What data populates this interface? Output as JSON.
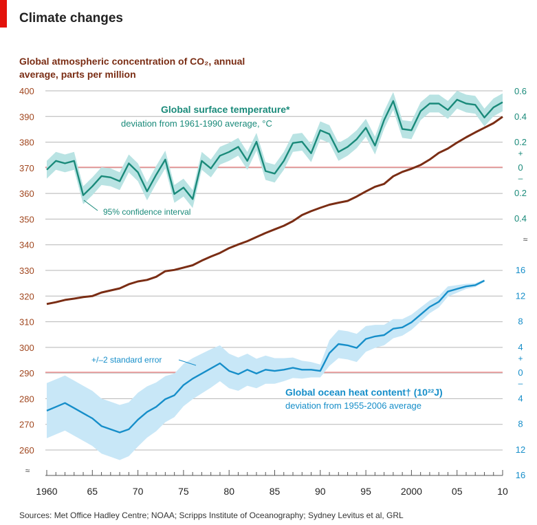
{
  "title": "Climate changes",
  "source": "Sources: Met Office Hadley Centre; NOAA; Scripps Institute of Oceanography; Sydney Levitus et al, GRL",
  "colors": {
    "co2": "#7a2d14",
    "temperature": "#1a8a7a",
    "temperature_band": "#b9e3e3",
    "ocean": "#168ec9",
    "ocean_band": "#c8e7f7",
    "zero_line": "#f08080",
    "grid": "#b5b5b5",
    "left_axis": "#a0461e",
    "right_axis_top": "#1a8a7a",
    "right_axis_bottom": "#168ec9"
  },
  "chart_data": [
    {
      "type": "line",
      "title": "Global atmospheric concentration of CO₂, annual average, parts per million",
      "x_ticks": [
        "1960",
        "65",
        "70",
        "75",
        "80",
        "85",
        "90",
        "95",
        "2000",
        "05",
        "10"
      ],
      "x_range": [
        1960,
        2010
      ],
      "ylim": [
        260,
        400
      ],
      "y_ticks": [
        260,
        270,
        280,
        290,
        300,
        310,
        320,
        330,
        340,
        350,
        360,
        370,
        380,
        390,
        400
      ],
      "series": [
        {
          "x": [
            1960,
            1961,
            1962,
            1963,
            1964,
            1965,
            1966,
            1967,
            1968,
            1969,
            1970,
            1971,
            1972,
            1973,
            1974,
            1975,
            1976,
            1977,
            1978,
            1979,
            1980,
            1981,
            1982,
            1983,
            1984,
            1985,
            1986,
            1987,
            1988,
            1989,
            1990,
            1991,
            1992,
            1993,
            1994,
            1995,
            1996,
            1997,
            1998,
            1999,
            2000,
            2001,
            2002,
            2003,
            2004,
            2005,
            2006,
            2007,
            2008,
            2009,
            2010
          ],
          "values": [
            316.9,
            317.6,
            318.5,
            319.0,
            319.6,
            320.0,
            321.4,
            322.2,
            323.0,
            324.6,
            325.7,
            326.3,
            327.5,
            329.7,
            330.2,
            331.1,
            332.0,
            333.8,
            335.4,
            336.8,
            338.7,
            340.1,
            341.4,
            343.0,
            344.6,
            346.0,
            347.4,
            349.2,
            351.6,
            353.1,
            354.4,
            355.6,
            356.4,
            357.1,
            358.8,
            360.8,
            362.6,
            363.7,
            366.7,
            368.4,
            369.6,
            371.1,
            373.2,
            375.8,
            377.5,
            379.8,
            381.9,
            383.8,
            385.6,
            387.4,
            389.9
          ]
        }
      ]
    },
    {
      "type": "area",
      "title": "Global surface temperature*",
      "subtitle": "deviation from 1961-1990 average, °C",
      "x_ticks": [
        "1960",
        "65",
        "70",
        "75",
        "80",
        "85",
        "90",
        "95",
        "2000",
        "05",
        "10"
      ],
      "x_range": [
        1960,
        2010
      ],
      "ylim": [
        -0.4,
        0.6
      ],
      "y_tick_labels": [
        "0.6",
        "0.4",
        "0.2",
        "0",
        "0.2",
        "0.4"
      ],
      "y_tick_values": [
        0.6,
        0.4,
        0.2,
        0,
        -0.2,
        -0.4
      ],
      "annotation": "95% confidence interval",
      "series": [
        {
          "x": [
            1960,
            1961,
            1962,
            1963,
            1964,
            1965,
            1966,
            1967,
            1968,
            1969,
            1970,
            1971,
            1972,
            1973,
            1974,
            1975,
            1976,
            1977,
            1978,
            1979,
            1980,
            1981,
            1982,
            1983,
            1984,
            1985,
            1986,
            1987,
            1988,
            1989,
            1990,
            1991,
            1992,
            1993,
            1994,
            1995,
            1996,
            1997,
            1998,
            1999,
            2000,
            2001,
            2002,
            2003,
            2004,
            2005,
            2006,
            2007,
            2008,
            2009,
            2010
          ],
          "values": [
            -0.02,
            0.05,
            0.03,
            0.05,
            -0.22,
            -0.15,
            -0.07,
            -0.08,
            -0.11,
            0.03,
            -0.04,
            -0.19,
            -0.06,
            0.06,
            -0.21,
            -0.16,
            -0.25,
            0.05,
            -0.01,
            0.09,
            0.12,
            0.16,
            0.05,
            0.2,
            -0.03,
            -0.05,
            0.05,
            0.19,
            0.2,
            0.11,
            0.29,
            0.26,
            0.12,
            0.16,
            0.22,
            0.31,
            0.17,
            0.37,
            0.52,
            0.3,
            0.29,
            0.44,
            0.5,
            0.5,
            0.45,
            0.53,
            0.5,
            0.49,
            0.39,
            0.47,
            0.51
          ],
          "band": 0.07
        }
      ]
    },
    {
      "type": "area",
      "title": "Global ocean heat content† (10²²J)",
      "subtitle": "deviation from 1955-2006 average",
      "x_ticks": [
        "1960",
        "65",
        "70",
        "75",
        "80",
        "85",
        "90",
        "95",
        "2000",
        "05",
        "10"
      ],
      "x_range": [
        1960,
        2010
      ],
      "ylim": [
        -16,
        16
      ],
      "y_tick_labels": [
        "16",
        "12",
        "8",
        "4",
        "0",
        "4",
        "8",
        "12",
        "16"
      ],
      "y_tick_values": [
        16,
        12,
        8,
        4,
        0,
        -4,
        -8,
        -12,
        -16
      ],
      "annotation": "+/–2 standard error",
      "series": [
        {
          "x": [
            1960,
            1961,
            1962,
            1963,
            1964,
            1965,
            1966,
            1967,
            1968,
            1969,
            1970,
            1971,
            1972,
            1973,
            1974,
            1975,
            1976,
            1977,
            1978,
            1979,
            1980,
            1981,
            1982,
            1983,
            1984,
            1985,
            1986,
            1987,
            1988,
            1989,
            1990,
            1991,
            1992,
            1993,
            1994,
            1995,
            1996,
            1997,
            1998,
            1999,
            2000,
            2001,
            2002,
            2003,
            2004,
            2005,
            2006,
            2007,
            2008
          ],
          "values": [
            -6.0,
            -5.4,
            -4.8,
            -5.6,
            -6.4,
            -7.2,
            -8.4,
            -8.9,
            -9.4,
            -8.9,
            -7.4,
            -6.2,
            -5.4,
            -4.2,
            -3.6,
            -2.0,
            -1.0,
            -0.2,
            0.6,
            1.4,
            0.2,
            -0.3,
            0.4,
            -0.2,
            0.4,
            0.2,
            0.4,
            0.7,
            0.4,
            0.4,
            0.2,
            3.0,
            4.4,
            4.2,
            3.8,
            5.2,
            5.6,
            5.8,
            6.8,
            7.0,
            7.8,
            9.0,
            10.2,
            11.0,
            12.6,
            13.0,
            13.4,
            13.6,
            14.3
          ],
          "band": [
            4.3,
            4.3,
            4.3,
            4.3,
            4.3,
            4.3,
            4.3,
            4.3,
            4.3,
            4.2,
            4.2,
            4.0,
            3.8,
            3.6,
            3.4,
            3.3,
            3.2,
            3.1,
            3.0,
            2.8,
            2.7,
            2.6,
            2.5,
            2.3,
            2.2,
            2.0,
            1.8,
            1.6,
            1.4,
            1.2,
            1.0,
            2.0,
            2.2,
            2.2,
            2.2,
            2.0,
            1.8,
            1.6,
            1.5,
            1.3,
            1.2,
            1.1,
            1.0,
            0.9,
            0.8,
            0.6,
            0.4,
            0.3,
            0.2
          ]
        }
      ]
    }
  ]
}
